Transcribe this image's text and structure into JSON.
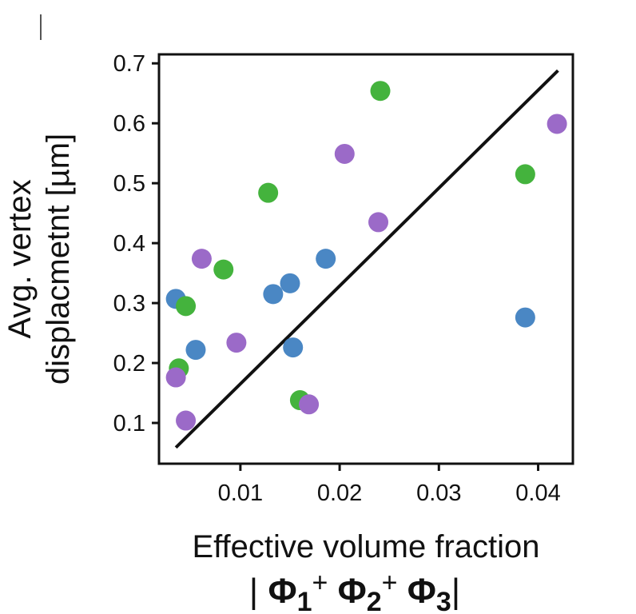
{
  "chart_data": {
    "type": "scatter",
    "xlabel": "Effective volume fraction",
    "xlabel_formula": {
      "bar": "|",
      "phi": "Φ",
      "sub1": "1",
      "sub2": "2",
      "sub3": "3",
      "plus": "+"
    },
    "ylabel_line1": "Avg. vertex",
    "ylabel_line2": "displacmetnt [µm]",
    "xlim": [
      0.0018,
      0.0435
    ],
    "ylim": [
      0.032,
      0.715
    ],
    "xticks": [
      {
        "value": 0.01,
        "label": "0.01"
      },
      {
        "value": 0.02,
        "label": "0.02"
      },
      {
        "value": 0.03,
        "label": "0.03"
      },
      {
        "value": 0.04,
        "label": "0.04"
      }
    ],
    "yticks": [
      {
        "value": 0.1,
        "label": "0.1"
      },
      {
        "value": 0.2,
        "label": "0.2"
      },
      {
        "value": 0.3,
        "label": "0.3"
      },
      {
        "value": 0.4,
        "label": "0.4"
      },
      {
        "value": 0.5,
        "label": "0.5"
      },
      {
        "value": 0.6,
        "label": "0.6"
      },
      {
        "value": 0.7,
        "label": "0.7"
      }
    ],
    "fit_line": {
      "x": [
        0.0035,
        0.042
      ],
      "y": [
        0.059,
        0.688
      ],
      "color": "#111111"
    },
    "series": [
      {
        "color": "#4a87c4",
        "points": [
          {
            "x": 0.0035,
            "y": 0.307
          },
          {
            "x": 0.0055,
            "y": 0.222
          },
          {
            "x": 0.0133,
            "y": 0.315
          },
          {
            "x": 0.015,
            "y": 0.333
          },
          {
            "x": 0.0153,
            "y": 0.226
          },
          {
            "x": 0.0186,
            "y": 0.374
          },
          {
            "x": 0.0387,
            "y": 0.276
          }
        ]
      },
      {
        "color": "#44b33d",
        "points": [
          {
            "x": 0.0038,
            "y": 0.191
          },
          {
            "x": 0.0045,
            "y": 0.295
          },
          {
            "x": 0.0083,
            "y": 0.356
          },
          {
            "x": 0.0128,
            "y": 0.484
          },
          {
            "x": 0.016,
            "y": 0.138
          },
          {
            "x": 0.0241,
            "y": 0.654
          },
          {
            "x": 0.0387,
            "y": 0.515
          }
        ]
      },
      {
        "color": "#9b6ac8",
        "points": [
          {
            "x": 0.0035,
            "y": 0.176
          },
          {
            "x": 0.0045,
            "y": 0.104
          },
          {
            "x": 0.0061,
            "y": 0.374
          },
          {
            "x": 0.0096,
            "y": 0.234
          },
          {
            "x": 0.0169,
            "y": 0.131
          },
          {
            "x": 0.0205,
            "y": 0.549
          },
          {
            "x": 0.0239,
            "y": 0.435
          },
          {
            "x": 0.0419,
            "y": 0.599
          }
        ]
      }
    ]
  }
}
